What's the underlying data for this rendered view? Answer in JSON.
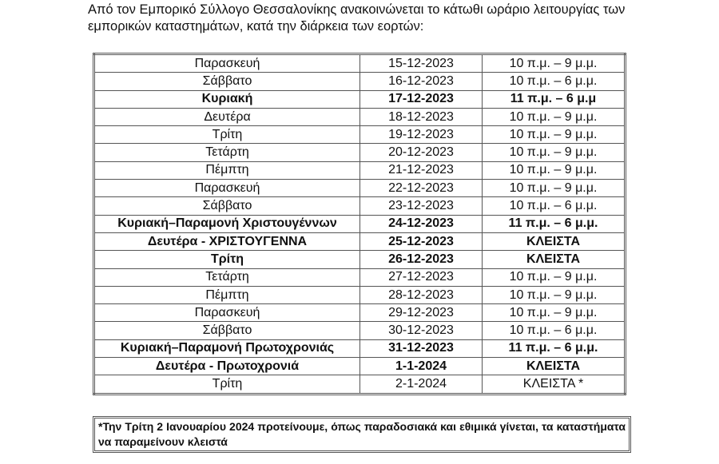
{
  "intro": "Από τον Εμπορικό Σύλλογο Θεσσαλονίκης ανακοινώνεται το κάτωθι ωράριο λειτουργίας των εμπορικών καταστημάτων, κατά την διάρκεια των εορτών:",
  "rows": [
    {
      "day": "Παρασκευή",
      "date": "15-12-2023",
      "hours": "10 π.μ. – 9 μ.μ.",
      "bold": false
    },
    {
      "day": "Σάββατο",
      "date": "16-12-2023",
      "hours": "10 π.μ. – 6 μ.μ.",
      "bold": false
    },
    {
      "day": "Κυριακή",
      "date": "17-12-2023",
      "hours": "11 π.μ. – 6 μ.μ",
      "bold": true
    },
    {
      "day": "Δευτέρα",
      "date": "18-12-2023",
      "hours": "10 π.μ. – 9 μ.μ.",
      "bold": false
    },
    {
      "day": "Τρίτη",
      "date": "19-12-2023",
      "hours": "10 π.μ. – 9 μ.μ.",
      "bold": false
    },
    {
      "day": "Τετάρτη",
      "date": "20-12-2023",
      "hours": "10 π.μ. – 9 μ.μ.",
      "bold": false
    },
    {
      "day": "Πέμπτη",
      "date": "21-12-2023",
      "hours": "10 π.μ. – 9 μ.μ.",
      "bold": false
    },
    {
      "day": "Παρασκευή",
      "date": "22-12-2023",
      "hours": "10 π.μ. – 9 μ.μ.",
      "bold": false
    },
    {
      "day": "Σάββατο",
      "date": "23-12-2023",
      "hours": "10 π.μ. – 6 μ.μ.",
      "bold": false
    },
    {
      "day": "Κυριακή–Παραμονή Χριστουγέννων",
      "date": "24-12-2023",
      "hours": "11 π.μ. – 6 μ.μ.",
      "bold": true
    },
    {
      "day": "Δευτέρα - ΧΡΙΣΤΟΥΓΕΝΝΑ",
      "date": "25-12-2023",
      "hours": "ΚΛΕΙΣΤΑ",
      "bold": true
    },
    {
      "day": "Τρίτη",
      "date": "26-12-2023",
      "hours": "ΚΛΕΙΣΤΑ",
      "bold": true
    },
    {
      "day": "Τετάρτη",
      "date": "27-12-2023",
      "hours": "10 π.μ. – 9 μ.μ.",
      "bold": false
    },
    {
      "day": "Πέμπτη",
      "date": "28-12-2023",
      "hours": "10 π.μ. – 9 μ.μ.",
      "bold": false
    },
    {
      "day": "Παρασκευή",
      "date": "29-12-2023",
      "hours": "10 π.μ. – 9 μ.μ.",
      "bold": false
    },
    {
      "day": "Σάββατο",
      "date": "30-12-2023",
      "hours": "10 π.μ. – 6 μ.μ.",
      "bold": false
    },
    {
      "day": "Κυριακή–Παραμονή Πρωτοχρονιάς",
      "date": "31-12-2023",
      "hours": "11 π.μ. – 6 μ.μ.",
      "bold": true
    },
    {
      "day": "Δευτέρα - Πρωτοχρονιά",
      "date": "1-1-2024",
      "hours": "ΚΛΕΙΣΤΑ",
      "bold": true
    },
    {
      "day": "Τρίτη",
      "date": "2-1-2024",
      "hours": "ΚΛΕΙΣΤΑ *",
      "bold": false
    }
  ],
  "note": "*Την Τρίτη 2 Ιανουαρίου 2024 προτείνουμε, όπως παραδοσιακά και εθιμικά γίνεται, τα καταστήματα να παραμείνουν κλειστά"
}
